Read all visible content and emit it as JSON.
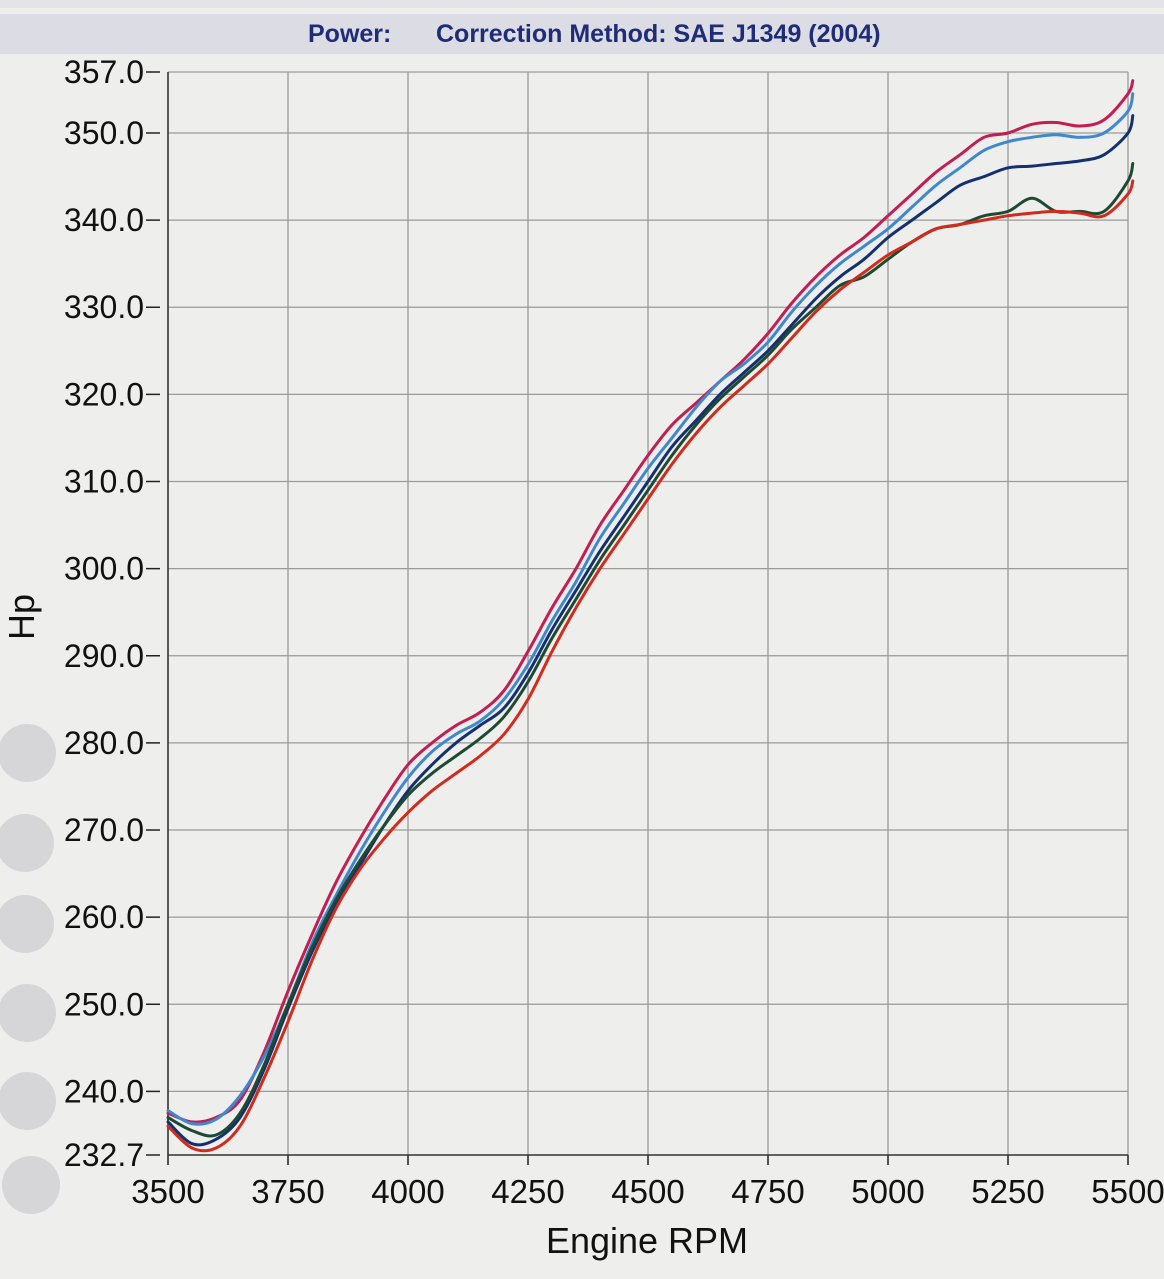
{
  "header": {
    "power_label": "Power:",
    "correction_label": "Correction Method: SAE J1349 (2004)"
  },
  "chart_data": {
    "type": "line",
    "title": "",
    "xlabel": "Engine RPM",
    "ylabel": "Hp",
    "xlim": [
      3500,
      5500
    ],
    "ylim": [
      232.7,
      357.0
    ],
    "xticks": [
      "3500",
      "3750",
      "4000",
      "4250",
      "4500",
      "4750",
      "5000",
      "5250",
      "5500"
    ],
    "yticks": [
      "232.7",
      "240.0",
      "250.0",
      "260.0",
      "270.0",
      "280.0",
      "290.0",
      "300.0",
      "310.0",
      "320.0",
      "330.0",
      "340.0",
      "350.0",
      "357.0"
    ],
    "grid": true,
    "series": [
      {
        "color": "#c21e52",
        "x": [
          3500,
          3550,
          3600,
          3650,
          3700,
          3750,
          3800,
          3850,
          3900,
          3950,
          4000,
          4050,
          4100,
          4150,
          4200,
          4250,
          4300,
          4350,
          4400,
          4450,
          4500,
          4550,
          4600,
          4650,
          4700,
          4750,
          4800,
          4850,
          4900,
          4950,
          5000,
          5050,
          5100,
          5150,
          5200,
          5250,
          5300,
          5350,
          5400,
          5450,
          5500,
          5510
        ],
        "y": [
          237.5,
          236.5,
          237.0,
          239.0,
          244.5,
          251.5,
          258.0,
          264.0,
          269.0,
          273.5,
          277.5,
          280.0,
          282.0,
          283.5,
          286.0,
          290.5,
          295.5,
          300.0,
          305.0,
          309.0,
          313.0,
          316.5,
          319.0,
          321.5,
          324.0,
          327.0,
          330.5,
          333.5,
          336.0,
          338.0,
          340.5,
          343.0,
          345.5,
          347.5,
          349.5,
          350.0,
          351.0,
          351.2,
          350.8,
          351.5,
          354.5,
          356.0
        ]
      },
      {
        "color": "#3f88cf",
        "x": [
          3500,
          3550,
          3600,
          3650,
          3700,
          3750,
          3800,
          3850,
          3900,
          3950,
          4000,
          4050,
          4100,
          4150,
          4200,
          4250,
          4300,
          4350,
          4400,
          4450,
          4500,
          4550,
          4600,
          4650,
          4700,
          4750,
          4800,
          4850,
          4900,
          4950,
          5000,
          5050,
          5100,
          5150,
          5200,
          5250,
          5300,
          5350,
          5400,
          5450,
          5500,
          5510
        ],
        "y": [
          237.8,
          236.3,
          236.8,
          239.5,
          244.0,
          250.0,
          257.0,
          262.5,
          267.5,
          272.0,
          276.0,
          279.0,
          281.0,
          282.5,
          285.0,
          289.0,
          294.0,
          298.5,
          303.5,
          307.5,
          311.5,
          315.0,
          318.5,
          321.5,
          323.5,
          326.0,
          329.5,
          332.5,
          335.0,
          337.0,
          339.0,
          341.5,
          344.0,
          346.0,
          348.0,
          349.0,
          349.5,
          349.8,
          349.5,
          350.0,
          352.5,
          354.5
        ]
      },
      {
        "color": "#14306e",
        "x": [
          3500,
          3550,
          3600,
          3650,
          3700,
          3750,
          3800,
          3850,
          3900,
          3950,
          4000,
          4050,
          4100,
          4150,
          4200,
          4250,
          4300,
          4350,
          4400,
          4450,
          4500,
          4550,
          4600,
          4650,
          4700,
          4750,
          4800,
          4850,
          4900,
          4950,
          5000,
          5050,
          5100,
          5150,
          5200,
          5250,
          5300,
          5350,
          5400,
          5450,
          5500,
          5510
        ],
        "y": [
          236.5,
          234.0,
          234.5,
          237.0,
          242.5,
          249.5,
          256.0,
          261.5,
          266.0,
          270.5,
          274.5,
          277.5,
          280.0,
          282.0,
          284.0,
          288.0,
          293.0,
          297.5,
          302.0,
          306.0,
          310.0,
          314.0,
          317.0,
          320.0,
          322.5,
          325.0,
          328.0,
          331.0,
          333.5,
          335.5,
          338.0,
          340.0,
          342.0,
          344.0,
          345.0,
          346.0,
          346.2,
          346.5,
          346.8,
          347.5,
          350.0,
          352.0
        ]
      },
      {
        "color": "#1e4a32",
        "x": [
          3500,
          3550,
          3600,
          3650,
          3700,
          3750,
          3800,
          3850,
          3900,
          3950,
          4000,
          4050,
          4100,
          4150,
          4200,
          4250,
          4300,
          4350,
          4400,
          4450,
          4500,
          4550,
          4600,
          4650,
          4700,
          4750,
          4800,
          4850,
          4900,
          4950,
          5000,
          5050,
          5100,
          5150,
          5200,
          5250,
          5300,
          5350,
          5400,
          5450,
          5500,
          5510
        ],
        "y": [
          237.0,
          235.5,
          235.0,
          237.5,
          243.0,
          250.0,
          256.5,
          262.0,
          266.5,
          270.5,
          274.0,
          276.5,
          278.5,
          280.5,
          283.0,
          287.0,
          292.0,
          296.5,
          301.0,
          305.0,
          309.0,
          313.0,
          316.5,
          319.5,
          322.0,
          324.5,
          327.5,
          330.0,
          332.5,
          333.5,
          335.5,
          337.5,
          339.0,
          339.5,
          340.5,
          341.0,
          342.5,
          341.0,
          341.0,
          341.0,
          344.5,
          346.5
        ]
      },
      {
        "color": "#d12b1c",
        "x": [
          3500,
          3550,
          3600,
          3650,
          3700,
          3750,
          3800,
          3850,
          3900,
          3950,
          4000,
          4050,
          4100,
          4150,
          4200,
          4250,
          4300,
          4350,
          4400,
          4450,
          4500,
          4550,
          4600,
          4650,
          4700,
          4750,
          4800,
          4850,
          4900,
          4950,
          5000,
          5050,
          5100,
          5150,
          5200,
          5250,
          5300,
          5350,
          5400,
          5450,
          5500,
          5510
        ],
        "y": [
          236.0,
          233.5,
          233.5,
          236.0,
          241.5,
          248.0,
          255.0,
          261.0,
          265.5,
          269.0,
          272.0,
          274.5,
          276.5,
          278.5,
          281.0,
          285.0,
          290.5,
          295.5,
          300.0,
          304.0,
          308.0,
          312.0,
          315.5,
          318.5,
          321.0,
          323.5,
          326.5,
          329.5,
          332.0,
          334.0,
          336.0,
          337.5,
          339.0,
          339.5,
          340.0,
          340.5,
          340.8,
          341.0,
          340.8,
          340.5,
          343.0,
          344.5
        ]
      }
    ]
  }
}
